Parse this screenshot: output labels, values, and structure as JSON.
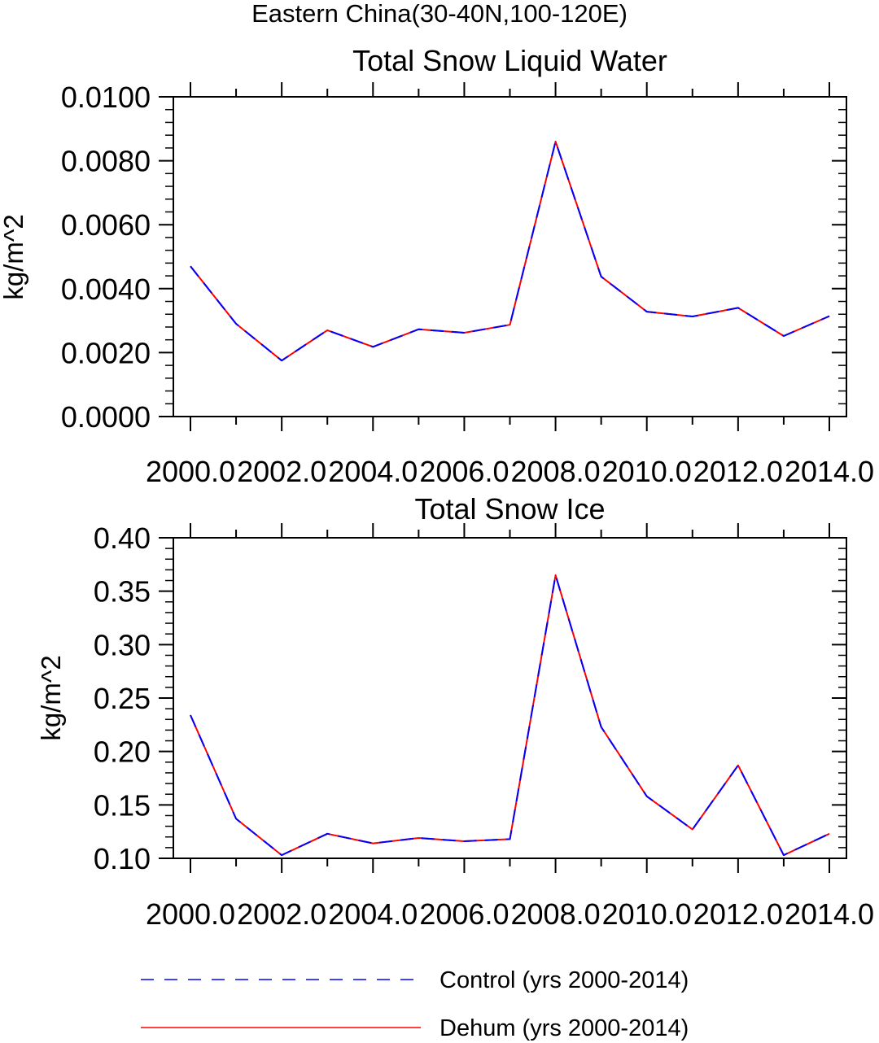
{
  "header": {
    "title": "Eastern China(30-40N,100-120E)"
  },
  "legend": {
    "placement": "bottom",
    "items": [
      {
        "label": "Control (yrs 2000-2014)",
        "color": "#0000ff",
        "style": "dashed"
      },
      {
        "label": "Dehum (yrs 2000-2014)",
        "color": "#ff0000",
        "style": "solid"
      }
    ]
  },
  "chart_data": [
    {
      "type": "line",
      "title": "Total Snow Liquid Water",
      "xlabel": "",
      "ylabel": "kg/m^2",
      "xlim": [
        2000,
        2014
      ],
      "ylim": [
        0,
        0.01
      ],
      "grid": false,
      "x_ticks": [
        "2000.0",
        "2002.0",
        "2004.0",
        "2006.0",
        "2008.0",
        "2010.0",
        "2012.0",
        "2014.0"
      ],
      "y_ticks": [
        "0.0000",
        "0.0020",
        "0.0040",
        "0.0060",
        "0.0080",
        "0.0100"
      ],
      "x": [
        2000,
        2001,
        2002,
        2003,
        2004,
        2005,
        2006,
        2007,
        2008,
        2009,
        2010,
        2011,
        2012,
        2013,
        2014
      ],
      "series": [
        {
          "name": "Control (yrs 2000-2014)",
          "color": "#0000ff",
          "style": "dashed",
          "values": [
            0.0047,
            0.0029,
            0.00175,
            0.0027,
            0.00218,
            0.00273,
            0.00262,
            0.00287,
            0.0086,
            0.00438,
            0.00328,
            0.00313,
            0.0034,
            0.00252,
            0.00314
          ]
        },
        {
          "name": "Dehum (yrs 2000-2014)",
          "color": "#ff0000",
          "style": "solid",
          "values": [
            0.0047,
            0.0029,
            0.00175,
            0.0027,
            0.00218,
            0.00273,
            0.00262,
            0.00287,
            0.0086,
            0.00438,
            0.00328,
            0.00313,
            0.0034,
            0.00252,
            0.00314
          ]
        }
      ]
    },
    {
      "type": "line",
      "title": "Total Snow Ice",
      "xlabel": "",
      "ylabel": "kg/m^2",
      "xlim": [
        2000,
        2014
      ],
      "ylim": [
        0.1,
        0.4
      ],
      "grid": false,
      "x_ticks": [
        "2000.0",
        "2002.0",
        "2004.0",
        "2006.0",
        "2008.0",
        "2010.0",
        "2012.0",
        "2014.0"
      ],
      "y_ticks": [
        "0.10",
        "0.15",
        "0.20",
        "0.25",
        "0.30",
        "0.35",
        "0.40"
      ],
      "x": [
        2000,
        2001,
        2002,
        2003,
        2004,
        2005,
        2006,
        2007,
        2008,
        2009,
        2010,
        2011,
        2012,
        2013,
        2014
      ],
      "series": [
        {
          "name": "Control (yrs 2000-2014)",
          "color": "#0000ff",
          "style": "dashed",
          "values": [
            0.234,
            0.137,
            0.103,
            0.123,
            0.114,
            0.119,
            0.116,
            0.118,
            0.365,
            0.223,
            0.158,
            0.127,
            0.187,
            0.103,
            0.123
          ]
        },
        {
          "name": "Dehum (yrs 2000-2014)",
          "color": "#ff0000",
          "style": "solid",
          "values": [
            0.234,
            0.137,
            0.103,
            0.123,
            0.114,
            0.119,
            0.116,
            0.118,
            0.365,
            0.223,
            0.158,
            0.127,
            0.187,
            0.103,
            0.123
          ]
        }
      ]
    }
  ]
}
